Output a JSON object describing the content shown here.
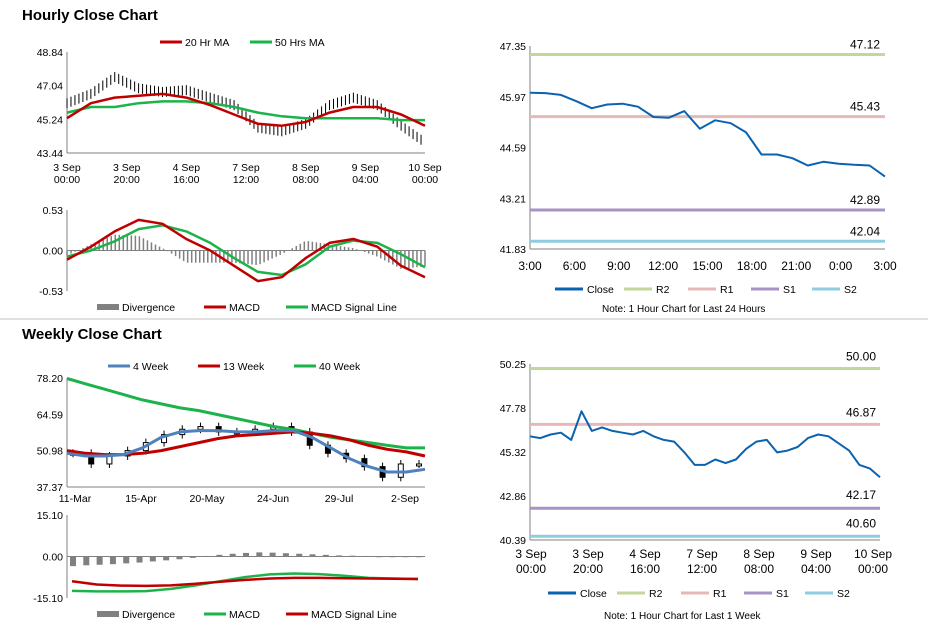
{
  "sections": {
    "hourly_title": "Hourly Close Chart",
    "weekly_title": "Weekly Close Chart",
    "note_hourly": "Note: 1 Hour Chart for Last 24 Hours",
    "note_weekly": "Note: 1 Hour Chart for Last 1 Week"
  },
  "colors": {
    "red": "#C00000",
    "green": "#1BB34A",
    "blue": "#4F81BD",
    "close": "#0B63B0",
    "r2": "#C3D69B",
    "r1": "#E6B9B8",
    "s1": "#A794C6",
    "s2": "#8ECDE0",
    "divergence": "#808080"
  },
  "chart_data": [
    {
      "id": "hourly_price",
      "type": "line",
      "legend": [
        "20 Hr MA",
        "50 Hrs MA"
      ],
      "y_ticks": [
        "48.84",
        "47.04",
        "45.24",
        "43.44"
      ],
      "ylim": [
        43.44,
        48.84
      ],
      "x_ticks": [
        [
          "3 Sep",
          "00:00"
        ],
        [
          "3 Sep",
          "20:00"
        ],
        [
          "4 Sep",
          "16:00"
        ],
        [
          "7 Sep",
          "12:00"
        ],
        [
          "8 Sep",
          "08:00"
        ],
        [
          "9 Sep",
          "04:00"
        ],
        [
          "10 Sep",
          "00:00"
        ]
      ],
      "series": [
        {
          "name": "20 Hr MA",
          "values": [
            45.3,
            46.1,
            46.4,
            46.5,
            46.6,
            46.4,
            46.0,
            45.5,
            45.0,
            44.9,
            45.1,
            45.6,
            45.9,
            45.9,
            45.5,
            44.9
          ]
        },
        {
          "name": "50 Hrs MA",
          "values": [
            45.6,
            45.9,
            45.9,
            46.1,
            46.2,
            46.2,
            46.1,
            45.9,
            45.6,
            45.4,
            45.3,
            45.3,
            45.3,
            45.3,
            45.2,
            45.2
          ]
        }
      ],
      "close": [
        46.1,
        46.6,
        47.5,
        46.9,
        46.7,
        46.8,
        46.4,
        46.0,
        44.8,
        44.6,
        45.0,
        46.0,
        46.4,
        46.0,
        44.9,
        44.0
      ]
    },
    {
      "id": "hourly_macd",
      "type": "line",
      "legend": [
        "Divergence",
        "MACD",
        "MACD Signal Line"
      ],
      "y_ticks": [
        "0.53",
        "0.00",
        "-0.53"
      ],
      "ylim": [
        -0.53,
        0.53
      ],
      "series": [
        {
          "name": "MACD",
          "values": [
            -0.12,
            0.05,
            0.25,
            0.4,
            0.35,
            0.15,
            0.0,
            -0.2,
            -0.4,
            -0.35,
            -0.1,
            0.1,
            0.15,
            0.05,
            -0.2,
            -0.35
          ]
        },
        {
          "name": "MACD Signal Line",
          "values": [
            -0.08,
            0.0,
            0.12,
            0.28,
            0.33,
            0.25,
            0.1,
            -0.1,
            -0.28,
            -0.32,
            -0.18,
            0.05,
            0.13,
            0.1,
            -0.05,
            -0.22
          ]
        }
      ]
    },
    {
      "id": "hourly_pivot",
      "type": "line",
      "legend": [
        "Close",
        "R2",
        "R1",
        "S1",
        "S2"
      ],
      "y_ticks": [
        "47.35",
        "45.97",
        "44.59",
        "43.21",
        "41.83"
      ],
      "ylim": [
        41.83,
        47.35
      ],
      "x_ticks": [
        "3:00",
        "6:00",
        "9:00",
        "12:00",
        "15:00",
        "18:00",
        "21:00",
        "0:00",
        "3:00"
      ],
      "levels": {
        "R2": "47.12",
        "R1": "45.43",
        "S1": "42.89",
        "S2": "42.04"
      },
      "series": [
        {
          "name": "Close",
          "values": [
            46.08,
            46.07,
            46.02,
            45.85,
            45.66,
            45.76,
            45.78,
            45.7,
            45.42,
            45.4,
            45.58,
            45.1,
            45.33,
            45.25,
            45.0,
            44.4,
            44.4,
            44.3,
            44.1,
            44.2,
            44.15,
            44.12,
            44.1,
            43.8
          ]
        }
      ]
    },
    {
      "id": "weekly_price",
      "type": "line",
      "legend": [
        "4 Week",
        "13 Week",
        "40 Week"
      ],
      "y_ticks": [
        "78.20",
        "64.59",
        "50.98",
        "37.37"
      ],
      "ylim": [
        37.37,
        78.2
      ],
      "x_ticks": [
        "11-Mar",
        "15-Apr",
        "20-May",
        "24-Jun",
        "29-Jul",
        "2-Sep"
      ],
      "series": [
        {
          "name": "4 Week",
          "values": [
            50,
            49,
            49,
            49.5,
            52,
            56,
            58,
            58.5,
            58.5,
            58,
            58,
            58.5,
            58.5,
            56,
            52,
            48,
            45,
            43,
            43,
            44
          ]
        },
        {
          "name": "13 Week",
          "values": [
            51,
            50,
            49.5,
            49.5,
            50,
            51,
            52.5,
            54,
            55.5,
            56.5,
            57,
            57.5,
            58,
            57.5,
            56.5,
            55,
            53,
            51.5,
            50.5,
            49
          ]
        },
        {
          "name": "40 Week",
          "values": [
            78,
            76,
            74,
            72,
            70,
            68.5,
            67,
            66,
            64.5,
            63,
            61.5,
            60,
            59,
            57.5,
            56,
            55,
            54,
            53,
            52,
            52
          ]
        }
      ],
      "close": [
        50,
        46,
        49,
        51,
        54,
        57,
        59,
        60,
        58,
        58,
        59,
        60,
        58,
        53,
        50,
        48,
        45,
        41,
        46,
        46
      ]
    },
    {
      "id": "weekly_macd",
      "type": "bar",
      "legend": [
        "Divergence",
        "MACD",
        "MACD Signal Line"
      ],
      "y_ticks": [
        "15.10",
        "0.00",
        "-15.10"
      ],
      "ylim": [
        -15.1,
        15.1
      ],
      "series": [
        {
          "name": "Divergence",
          "values": [
            -3.5,
            -3.2,
            -3,
            -2.8,
            -2.5,
            -2.2,
            -1.8,
            -1.4,
            -1,
            -0.5,
            0.2,
            0.6,
            1,
            1.3,
            1.5,
            1.4,
            1.2,
            1,
            0.8,
            0.6,
            0.4,
            0.3,
            0.2,
            0.1,
            0.1,
            0.1,
            0.1
          ]
        },
        {
          "name": "MACD",
          "values": [
            -12.5,
            -12.7,
            -12.7,
            -12.6,
            -11.8,
            -10.5,
            -9.0,
            -7.5,
            -6.5,
            -6.2,
            -6.4,
            -7.0,
            -7.8,
            -8.0,
            -8.2
          ]
        },
        {
          "name": "MACD Signal Line",
          "values": [
            -9.0,
            -10.2,
            -10.6,
            -10.7,
            -10.5,
            -9.9,
            -9.2,
            -8.5,
            -8.0,
            -7.8,
            -7.8,
            -7.9,
            -8.0,
            -8.1,
            -8.2
          ]
        }
      ]
    },
    {
      "id": "weekly_pivot",
      "type": "line",
      "legend": [
        "Close",
        "R2",
        "R1",
        "S1",
        "S2"
      ],
      "y_ticks": [
        "50.25",
        "47.78",
        "45.32",
        "42.86",
        "40.39"
      ],
      "ylim": [
        40.39,
        50.25
      ],
      "x_ticks": [
        [
          "3 Sep",
          "00:00"
        ],
        [
          "3 Sep",
          "20:00"
        ],
        [
          "4 Sep",
          "16:00"
        ],
        [
          "7 Sep",
          "12:00"
        ],
        [
          "8 Sep",
          "08:00"
        ],
        [
          "9 Sep",
          "04:00"
        ],
        [
          "10 Sep",
          "00:00"
        ]
      ],
      "levels": {
        "R2": "50.00",
        "R1": "46.87",
        "S1": "42.17",
        "S2": "40.60"
      },
      "series": [
        {
          "name": "Close",
          "values": [
            46.2,
            46.1,
            46.3,
            46.4,
            46.0,
            47.6,
            46.5,
            46.7,
            46.5,
            46.4,
            46.3,
            46.5,
            46.2,
            46.0,
            45.9,
            45.3,
            44.6,
            44.6,
            44.9,
            44.7,
            44.9,
            45.5,
            45.9,
            46.0,
            45.3,
            45.4,
            45.6,
            46.1,
            46.3,
            46.2,
            45.8,
            45.4,
            44.6,
            44.4,
            43.9
          ]
        }
      ]
    }
  ]
}
